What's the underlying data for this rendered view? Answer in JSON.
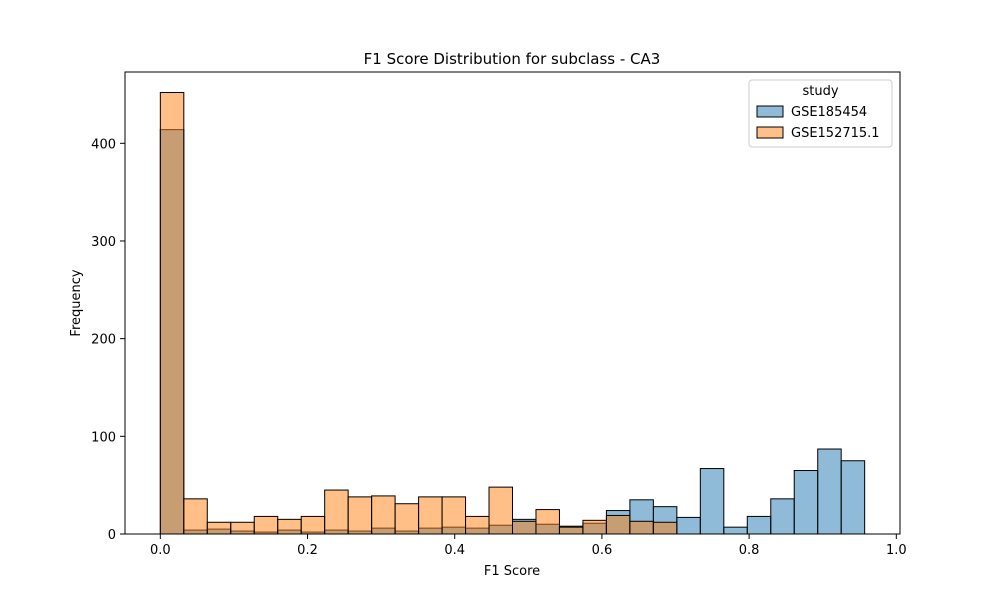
{
  "chart_data": {
    "type": "bar",
    "title": "F1 Score Distribution for subclass - CA3",
    "xlabel": "F1 Score",
    "ylabel": "Frequency",
    "xlim": [
      -0.048,
      1.005
    ],
    "ylim": [
      0,
      473
    ],
    "x_ticks": [
      0.0,
      0.2,
      0.4,
      0.6,
      0.8,
      1.0
    ],
    "x_tick_labels": [
      "0.0",
      "0.2",
      "0.4",
      "0.6",
      "0.8",
      "1.0"
    ],
    "y_ticks": [
      0,
      100,
      200,
      300,
      400
    ],
    "y_tick_labels": [
      "0",
      "100",
      "200",
      "300",
      "400"
    ],
    "bin_start": 0.0,
    "bin_width": 0.0319,
    "grid": false,
    "legend": {
      "title": "study",
      "placement": "top-right"
    },
    "series": [
      {
        "name": "GSE185454",
        "color": "#1f77b4",
        "values": [
          414,
          4,
          5,
          3,
          2,
          4,
          2,
          4,
          3,
          6,
          3,
          6,
          7,
          6,
          9,
          15,
          10,
          8,
          11,
          24,
          35,
          28,
          17,
          67,
          7,
          18,
          36,
          65,
          87,
          75
        ]
      },
      {
        "name": "GSE152715.1",
        "color": "#ff7f0e",
        "values": [
          452,
          36,
          12,
          12,
          18,
          15,
          18,
          45,
          38,
          39,
          31,
          38,
          38,
          18,
          48,
          13,
          25,
          7,
          14,
          19,
          13,
          12,
          0,
          0,
          0,
          0,
          0,
          0,
          0,
          0
        ]
      }
    ]
  }
}
